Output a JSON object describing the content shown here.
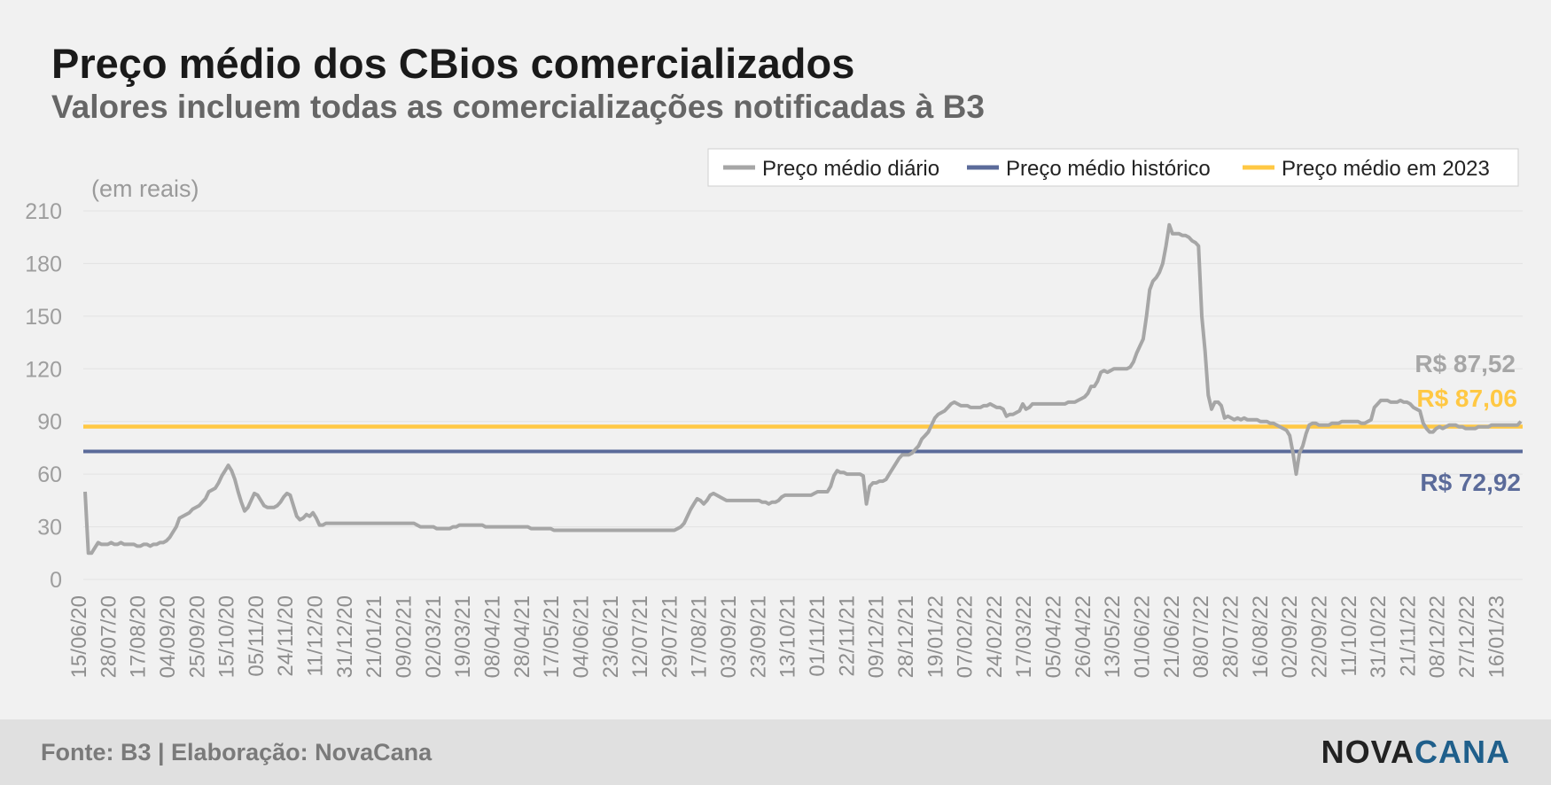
{
  "title": "Preço médio dos CBios comercializados",
  "subtitle": "Valores incluem todas as comercializações notificadas à B3",
  "footer": {
    "source": "Fonte: B3 | Elaboração: NovaCana",
    "logo_part1": "NOVA",
    "logo_part2": "CANA"
  },
  "colors": {
    "daily": "#a6a6a6",
    "historic": "#5b6b9a",
    "y2023": "#ffc844",
    "grid": "#e2e2e2",
    "axis_text": "#9e9e9e"
  },
  "chart_data": {
    "type": "line",
    "unit_label": "(em reais)",
    "ylim": [
      0,
      210
    ],
    "yticks": [
      0,
      30,
      60,
      90,
      120,
      150,
      180,
      210
    ],
    "grid": true,
    "legend_position": "top-right",
    "x_tick_labels": [
      "15/06/20",
      "28/07/20",
      "17/08/20",
      "04/09/20",
      "25/09/20",
      "15/10/20",
      "05/11/20",
      "24/11/20",
      "11/12/20",
      "31/12/20",
      "21/01/21",
      "09/02/21",
      "02/03/21",
      "19/03/21",
      "08/04/21",
      "28/04/21",
      "17/05/21",
      "04/06/21",
      "23/06/21",
      "12/07/21",
      "29/07/21",
      "17/08/21",
      "03/09/21",
      "23/09/21",
      "13/10/21",
      "01/11/21",
      "22/11/21",
      "09/12/21",
      "28/12/21",
      "19/01/22",
      "07/02/22",
      "24/02/22",
      "17/03/22",
      "05/04/22",
      "26/04/22",
      "13/05/22",
      "01/06/22",
      "21/06/22",
      "08/07/22",
      "28/07/22",
      "16/08/22",
      "02/09/22",
      "22/09/22",
      "11/10/22",
      "31/10/22",
      "21/11/22",
      "08/12/22",
      "27/12/22",
      "16/01/23"
    ],
    "series": [
      {
        "name": "Preço médio diário",
        "values": [
          50,
          15,
          15,
          18,
          21,
          20,
          20,
          20,
          21,
          20,
          20,
          21,
          20,
          20,
          20,
          20,
          19,
          19,
          20,
          20,
          19,
          20,
          20,
          21,
          21,
          22,
          24,
          27,
          30,
          35,
          36,
          37,
          38,
          40,
          41,
          42,
          44,
          46,
          50,
          51,
          52,
          55,
          59,
          62,
          65,
          62,
          57,
          50,
          44,
          39,
          41,
          45,
          49,
          48,
          45,
          42,
          41,
          41,
          41,
          42,
          44,
          47,
          49,
          48,
          42,
          36,
          34,
          35,
          37,
          36,
          38,
          35,
          31,
          31,
          32,
          32,
          32,
          32,
          32,
          32,
          32,
          32,
          32,
          32,
          32,
          32,
          32,
          32,
          32,
          32,
          32,
          32,
          32,
          32,
          32,
          32,
          32,
          32,
          32,
          32,
          32,
          32,
          31,
          30,
          30,
          30,
          30,
          30,
          29,
          29,
          29,
          29,
          29,
          30,
          30,
          31,
          31,
          31,
          31,
          31,
          31,
          31,
          31,
          30,
          30,
          30,
          30,
          30,
          30,
          30,
          30,
          30,
          30,
          30,
          30,
          30,
          30,
          29,
          29,
          29,
          29,
          29,
          29,
          29,
          28,
          28,
          28,
          28,
          28,
          28,
          28,
          28,
          28,
          28,
          28,
          28,
          28,
          28,
          28,
          28,
          28,
          28,
          28,
          28,
          28,
          28,
          28,
          28,
          28,
          28,
          28,
          28,
          28,
          28,
          28,
          28,
          28,
          28,
          28,
          28,
          28,
          28,
          29,
          30,
          32,
          36,
          40,
          43,
          46,
          45,
          43,
          45,
          48,
          49,
          48,
          47,
          46,
          45,
          45,
          45,
          45,
          45,
          45,
          45,
          45,
          45,
          45,
          45,
          44,
          44,
          43,
          44,
          44,
          45,
          47,
          48,
          48,
          48,
          48,
          48,
          48,
          48,
          48,
          48,
          49,
          50,
          50,
          50,
          50,
          53,
          59,
          62,
          61,
          61,
          60,
          60,
          60,
          60,
          60,
          59,
          43,
          53,
          55,
          55,
          56,
          56,
          57,
          60,
          63,
          66,
          69,
          71,
          71,
          71,
          72,
          74,
          76,
          80,
          82,
          84,
          88,
          92,
          94,
          95,
          96,
          98,
          100,
          101,
          100,
          99,
          99,
          99,
          98,
          98,
          98,
          98,
          99,
          99,
          100,
          99,
          98,
          98,
          97,
          93,
          94,
          94,
          95,
          96,
          100,
          97,
          98,
          100,
          100,
          100,
          100,
          100,
          100,
          100,
          100,
          100,
          100,
          100,
          101,
          101,
          101,
          102,
          103,
          104,
          106,
          110,
          110,
          113,
          118,
          119,
          118,
          119,
          120,
          120,
          120,
          120,
          120,
          121,
          124,
          129,
          133,
          137,
          150,
          165,
          170,
          172,
          175,
          180,
          190,
          202,
          197,
          197,
          197,
          196,
          196,
          195,
          193,
          192,
          190,
          150,
          130,
          105,
          97,
          101,
          101,
          99,
          92,
          93,
          92,
          91,
          92,
          91,
          92,
          91,
          91,
          91,
          91,
          90,
          90,
          90,
          89,
          89,
          88,
          87,
          86,
          85,
          82,
          72,
          60,
          72,
          76,
          83,
          88,
          89,
          89,
          88,
          88,
          88,
          88,
          89,
          89,
          89,
          90,
          90,
          90,
          90,
          90,
          90,
          89,
          89,
          90,
          91,
          98,
          100,
          102,
          102,
          102,
          101,
          101,
          101,
          102,
          101,
          101,
          100,
          98,
          97,
          96,
          89,
          86,
          84,
          84,
          86,
          87,
          86,
          87,
          88,
          88,
          88,
          87,
          87,
          86,
          86,
          86,
          86,
          87,
          87,
          87,
          87,
          88,
          88,
          88,
          88,
          88,
          88,
          88,
          88,
          88,
          90
        ]
      },
      {
        "name": "Preço médio histórico",
        "values": [
          72.92
        ]
      },
      {
        "name": "Preço médio em 2023",
        "values": [
          87.06
        ]
      }
    ],
    "annotations": [
      {
        "text": "R$ 87,52",
        "series": "Preço médio diário",
        "value": 87.52
      },
      {
        "text": "R$ 87,06",
        "series": "Preço médio em 2023",
        "value": 87.06
      },
      {
        "text": "R$ 72,92",
        "series": "Preço médio histórico",
        "value": 72.92
      }
    ]
  }
}
